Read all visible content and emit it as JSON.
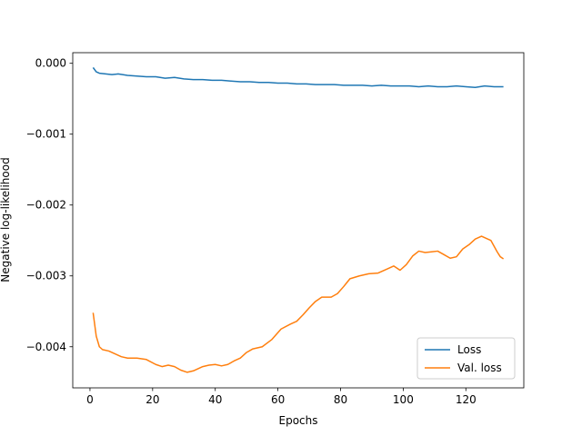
{
  "chart_data": {
    "type": "line",
    "title": "",
    "xlabel": "Epochs",
    "ylabel": "Negative log-likelihood",
    "xlim": [
      -5.5,
      138.5
    ],
    "ylim": [
      -0.00458,
      0.00015
    ],
    "xticks": [
      0,
      20,
      40,
      60,
      80,
      100,
      120
    ],
    "yticks": [
      0.0,
      -0.001,
      -0.002,
      -0.003,
      -0.004
    ],
    "ytick_labels": [
      "0.000",
      "−0.001",
      "−0.002",
      "−0.003",
      "−0.004"
    ],
    "grid": false,
    "legend_position": "lower-right",
    "series": [
      {
        "name": "Loss",
        "color": "#1f77b4",
        "points": [
          [
            1,
            -6e-05
          ],
          [
            2,
            -0.00012
          ],
          [
            3,
            -0.00014
          ],
          [
            5,
            -0.00015
          ],
          [
            7,
            -0.00016
          ],
          [
            9,
            -0.00015
          ],
          [
            12,
            -0.00017
          ],
          [
            15,
            -0.00018
          ],
          [
            18,
            -0.00019
          ],
          [
            21,
            -0.00019
          ],
          [
            24,
            -0.00021
          ],
          [
            27,
            -0.0002
          ],
          [
            30,
            -0.00022
          ],
          [
            33,
            -0.00023
          ],
          [
            36,
            -0.00023
          ],
          [
            39,
            -0.00024
          ],
          [
            42,
            -0.00024
          ],
          [
            45,
            -0.00025
          ],
          [
            48,
            -0.00026
          ],
          [
            51,
            -0.00026
          ],
          [
            54,
            -0.00027
          ],
          [
            57,
            -0.00027
          ],
          [
            60,
            -0.00028
          ],
          [
            63,
            -0.00028
          ],
          [
            66,
            -0.00029
          ],
          [
            69,
            -0.00029
          ],
          [
            72,
            -0.0003
          ],
          [
            75,
            -0.0003
          ],
          [
            78,
            -0.0003
          ],
          [
            81,
            -0.00031
          ],
          [
            84,
            -0.00031
          ],
          [
            87,
            -0.00031
          ],
          [
            90,
            -0.00032
          ],
          [
            93,
            -0.00031
          ],
          [
            96,
            -0.00032
          ],
          [
            99,
            -0.00032
          ],
          [
            102,
            -0.00032
          ],
          [
            105,
            -0.00033
          ],
          [
            108,
            -0.00032
          ],
          [
            111,
            -0.00033
          ],
          [
            114,
            -0.00033
          ],
          [
            117,
            -0.00032
          ],
          [
            120,
            -0.00033
          ],
          [
            123,
            -0.00034
          ],
          [
            126,
            -0.00032
          ],
          [
            129,
            -0.00033
          ],
          [
            132,
            -0.00033
          ]
        ]
      },
      {
        "name": "Val. loss",
        "color": "#ff7f0e",
        "points": [
          [
            1,
            -0.00352
          ],
          [
            2,
            -0.00385
          ],
          [
            3,
            -0.004
          ],
          [
            4,
            -0.00404
          ],
          [
            6,
            -0.00406
          ],
          [
            8,
            -0.0041
          ],
          [
            10,
            -0.00414
          ],
          [
            12,
            -0.00416
          ],
          [
            15,
            -0.00416
          ],
          [
            18,
            -0.00418
          ],
          [
            21,
            -0.00425
          ],
          [
            23,
            -0.00428
          ],
          [
            25,
            -0.00426
          ],
          [
            27,
            -0.00428
          ],
          [
            29,
            -0.00433
          ],
          [
            31,
            -0.00436
          ],
          [
            33,
            -0.00434
          ],
          [
            36,
            -0.00428
          ],
          [
            38,
            -0.00426
          ],
          [
            40,
            -0.00425
          ],
          [
            42,
            -0.00427
          ],
          [
            44,
            -0.00425
          ],
          [
            46,
            -0.0042
          ],
          [
            48,
            -0.00416
          ],
          [
            50,
            -0.00408
          ],
          [
            52,
            -0.00403
          ],
          [
            55,
            -0.004
          ],
          [
            58,
            -0.0039
          ],
          [
            61,
            -0.00375
          ],
          [
            64,
            -0.00368
          ],
          [
            66,
            -0.00364
          ],
          [
            68,
            -0.00355
          ],
          [
            70,
            -0.00345
          ],
          [
            72,
            -0.00336
          ],
          [
            74,
            -0.0033
          ],
          [
            77,
            -0.0033
          ],
          [
            79,
            -0.00325
          ],
          [
            81,
            -0.00315
          ],
          [
            83,
            -0.00304
          ],
          [
            86,
            -0.003
          ],
          [
            89,
            -0.00297
          ],
          [
            92,
            -0.00296
          ],
          [
            95,
            -0.0029
          ],
          [
            97,
            -0.00286
          ],
          [
            99,
            -0.00292
          ],
          [
            101,
            -0.00284
          ],
          [
            103,
            -0.00272
          ],
          [
            105,
            -0.00265
          ],
          [
            107,
            -0.00267
          ],
          [
            109,
            -0.00266
          ],
          [
            111,
            -0.00265
          ],
          [
            113,
            -0.0027
          ],
          [
            115,
            -0.00275
          ],
          [
            117,
            -0.00273
          ],
          [
            119,
            -0.00262
          ],
          [
            121,
            -0.00256
          ],
          [
            123,
            -0.00248
          ],
          [
            125,
            -0.00244
          ],
          [
            127,
            -0.00248
          ],
          [
            128,
            -0.0025
          ],
          [
            130,
            -0.00266
          ],
          [
            131,
            -0.00273
          ],
          [
            132,
            -0.00276
          ]
        ]
      }
    ]
  }
}
